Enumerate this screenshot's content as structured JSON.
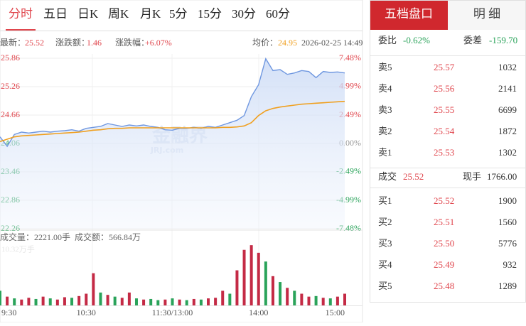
{
  "tabs": [
    "分时",
    "五日",
    "日K",
    "周K",
    "月K",
    "5分",
    "15分",
    "30分",
    "60分"
  ],
  "info": {
    "latest_label": "最新：",
    "latest": "25.52",
    "change_label": "涨跌额：",
    "change": "1.46",
    "pct_label": "涨跌幅：",
    "pct": "+6.07%",
    "avg_label": "均价：",
    "avg": "24.95",
    "datetime": "2026-02-25 14:49"
  },
  "watermark": {
    "logo": "金融界",
    "site": "JRJ.com"
  },
  "volume_info": {
    "volume": "成交量：2221.00手",
    "amount": "成交额：566.84万"
  },
  "chart_data": {
    "type": "line",
    "x": [
      0,
      5,
      10,
      15,
      20,
      25,
      30,
      35,
      40,
      45,
      50,
      55,
      60,
      65,
      70,
      75,
      80,
      85,
      90,
      95,
      100,
      105,
      110,
      115,
      120,
      125,
      130,
      135,
      140,
      145,
      150,
      155,
      160,
      165,
      170,
      175,
      180,
      185,
      190,
      195,
      200,
      205,
      210,
      215,
      220,
      225,
      230,
      235,
      240
    ],
    "xlim": [
      0,
      240
    ],
    "xticks": [
      {
        "value": 0,
        "label": "9:30"
      },
      {
        "value": 60,
        "label": "10:30"
      },
      {
        "value": 120,
        "label": "11:30/13:00"
      },
      {
        "value": 180,
        "label": "14:00"
      },
      {
        "value": 240,
        "label": "15:00"
      }
    ],
    "series": [
      {
        "name": "price",
        "color": "#6f97e0",
        "values": [
          24.2,
          24.0,
          24.25,
          24.3,
          24.28,
          24.3,
          24.32,
          24.3,
          24.32,
          24.33,
          24.35,
          24.32,
          24.38,
          24.4,
          24.42,
          24.48,
          24.45,
          24.42,
          24.45,
          24.43,
          24.45,
          24.42,
          24.4,
          24.35,
          24.34,
          24.38,
          24.38,
          24.4,
          24.38,
          24.42,
          24.4,
          24.45,
          24.5,
          24.55,
          24.65,
          25.05,
          25.3,
          25.85,
          25.6,
          25.62,
          25.52,
          25.55,
          25.6,
          25.58,
          25.45,
          25.58,
          25.56,
          25.57,
          25.55
        ]
      },
      {
        "name": "average",
        "color": "#f0a020",
        "values": [
          24.1,
          24.15,
          24.2,
          24.22,
          24.23,
          24.24,
          24.25,
          24.26,
          24.27,
          24.28,
          24.29,
          24.3,
          24.32,
          24.34,
          24.35,
          24.37,
          24.38,
          24.38,
          24.39,
          24.39,
          24.39,
          24.39,
          24.39,
          24.39,
          24.39,
          24.39,
          24.39,
          24.39,
          24.39,
          24.39,
          24.39,
          24.4,
          24.4,
          24.41,
          24.43,
          24.5,
          24.65,
          24.75,
          24.8,
          24.83,
          24.85,
          24.87,
          24.89,
          24.9,
          24.91,
          24.92,
          24.93,
          24.94,
          24.95
        ]
      }
    ],
    "ylim": [
      22.26,
      25.86
    ],
    "yticks": [
      25.86,
      25.26,
      24.66,
      24.06,
      23.46,
      22.86,
      22.26
    ],
    "y2lim": [
      -7.48,
      7.48
    ],
    "y2ticks": [
      {
        "value": 7.48,
        "label": "7.48%"
      },
      {
        "value": 4.99,
        "label": "4.99%"
      },
      {
        "value": 2.49,
        "label": "2.49%"
      },
      {
        "value": 0,
        "label": "0.00%"
      },
      {
        "value": -2.49,
        "label": "-2.49%"
      },
      {
        "value": -4.99,
        "label": "-4.99%"
      },
      {
        "value": -7.48,
        "label": "-7.48%"
      }
    ],
    "up_color": "#e0464d",
    "down_color": "#2aa35a",
    "flat_color": "#999999",
    "volume": {
      "max_label": "10.32万手",
      "ylim": [
        0,
        10.32
      ],
      "values": [
        2.5,
        1.5,
        1.2,
        1.0,
        1.3,
        1.1,
        1.5,
        1.2,
        1.0,
        1.4,
        1.3,
        1.6,
        2.0,
        5.5,
        2.2,
        1.8,
        1.5,
        1.3,
        2.2,
        1.2,
        1.0,
        1.1,
        0.9,
        1.0,
        1.2,
        1.0,
        0.9,
        1.1,
        1.0,
        1.2,
        1.3,
        2.5,
        2.0,
        6.0,
        9.5,
        10.3,
        9.0,
        7.5,
        5.0,
        4.0,
        3.0,
        2.5,
        2.0,
        1.5,
        1.6,
        1.3,
        1.2,
        1.5,
        2.0
      ],
      "colors": [
        "#2aa35a",
        "#c42a45",
        "#2aa35a",
        "#c42a45",
        "#c42a45",
        "#2aa35a",
        "#c42a45",
        "#2aa35a",
        "#c42a45",
        "#c42a45",
        "#2aa35a",
        "#c42a45",
        "#c42a45",
        "#c42a45",
        "#2aa35a",
        "#c42a45",
        "#2aa35a",
        "#c42a45",
        "#c42a45",
        "#2aa35a",
        "#c42a45",
        "#2aa35a",
        "#2aa35a",
        "#c42a45",
        "#2aa35a",
        "#c42a45",
        "#2aa35a",
        "#c42a45",
        "#2aa35a",
        "#c42a45",
        "#c42a45",
        "#c42a45",
        "#2aa35a",
        "#c42a45",
        "#c42a45",
        "#c42a45",
        "#c42a45",
        "#2aa35a",
        "#c42a45",
        "#2aa35a",
        "#c42a45",
        "#2aa35a",
        "#c42a45",
        "#c42a45",
        "#2aa35a",
        "#c42a45",
        "#2aa35a",
        "#c42a45",
        "#c42a45"
      ]
    }
  },
  "panel": {
    "tabs": [
      "五档盘口",
      "明 细"
    ],
    "ratio_label": "委比",
    "ratio": "-0.62%",
    "diff_label": "委差",
    "diff": "-159.70",
    "sell": [
      [
        "卖5",
        "25.57",
        "1032"
      ],
      [
        "卖4",
        "25.56",
        "2141"
      ],
      [
        "卖3",
        "25.55",
        "6699"
      ],
      [
        "卖2",
        "25.54",
        "1872"
      ],
      [
        "卖1",
        "25.53",
        "1302"
      ]
    ],
    "deal_label": "成交",
    "deal": "25.52",
    "hand_label": "现手",
    "hand": "1766.00",
    "buy": [
      [
        "买1",
        "25.52",
        "1900"
      ],
      [
        "买2",
        "25.51",
        "1560"
      ],
      [
        "买3",
        "25.50",
        "5776"
      ],
      [
        "买4",
        "25.49",
        "932"
      ],
      [
        "买5",
        "25.48",
        "1289"
      ]
    ]
  }
}
